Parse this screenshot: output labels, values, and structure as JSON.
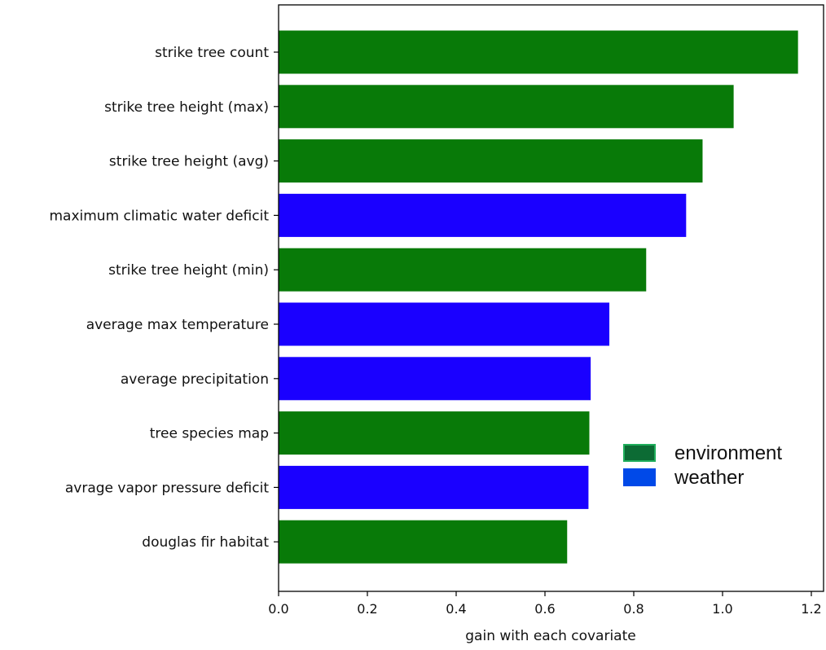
{
  "chart_data": {
    "type": "bar",
    "orientation": "horizontal",
    "title": "",
    "xlabel": "gain with each covariate",
    "ylabel": "",
    "xlim": [
      0,
      1.22
    ],
    "xticks": [
      "0.0",
      "0.2",
      "0.4",
      "0.6",
      "0.8",
      "1.0",
      "1.2"
    ],
    "grid": false,
    "legend_position": "center-right",
    "categories": [
      "strike tree count",
      "strike tree height (max)",
      "strike tree height (avg)",
      "maximum climatic water deficit",
      "strike tree height (min)",
      "average max temperature",
      "average precipitation",
      "tree species map",
      "avrage vapor pressure deficit",
      "douglas fir habitat"
    ],
    "values": [
      1.17,
      1.025,
      0.955,
      0.918,
      0.828,
      0.745,
      0.703,
      0.7,
      0.698,
      0.65
    ],
    "groups": [
      "environment",
      "environment",
      "environment",
      "weather",
      "environment",
      "weather",
      "weather",
      "environment",
      "weather",
      "environment"
    ],
    "legend": [
      {
        "key": "environment",
        "label": "environment",
        "color": "#087a08",
        "swatch": "#0c6b34",
        "swatch_border": "#1fae5c"
      },
      {
        "key": "weather",
        "label": "weather",
        "color": "#1a00ff",
        "swatch": "#0049e8",
        "swatch_border": "#0049e8"
      }
    ]
  }
}
